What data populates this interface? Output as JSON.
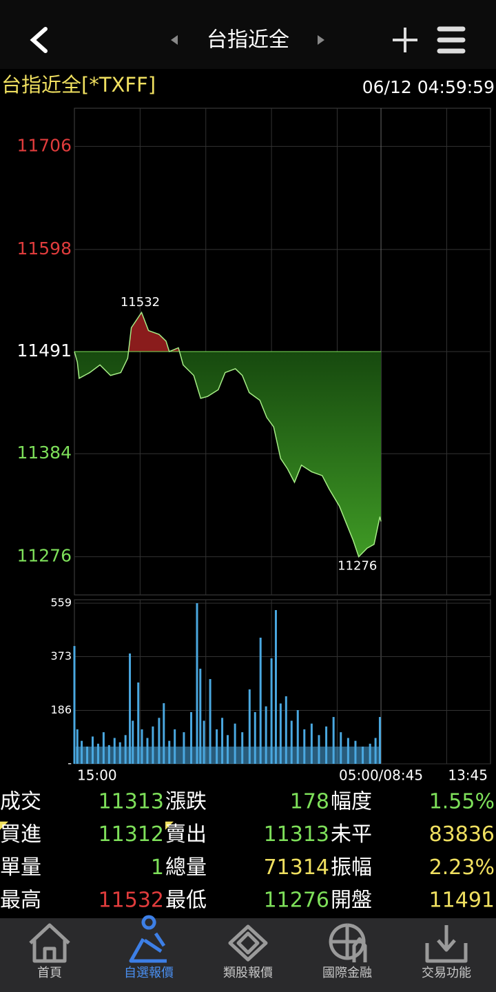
{
  "header": {
    "title": "台指近全"
  },
  "info": {
    "name": "台指近全[*TXFF]",
    "datetime": "06/12 04:59:59"
  },
  "chart_data": [
    {
      "type": "line",
      "x": [
        0,
        8,
        13,
        42,
        70,
        99,
        127,
        146,
        156,
        184,
        203,
        232,
        251,
        260,
        285,
        298,
        327,
        346,
        365,
        394,
        413,
        441,
        460,
        479,
        508,
        527,
        546,
        565,
        584,
        603,
        622,
        650,
        679,
        698,
        726,
        745,
        764,
        779,
        802,
        821,
        837,
        840
      ],
      "values": [
        11491,
        11480,
        11463,
        11469,
        11477,
        11466,
        11469,
        11484,
        11516,
        11532,
        11513,
        11509,
        11502,
        11491,
        11495,
        11477,
        11466,
        11442,
        11444,
        11451,
        11469,
        11473,
        11466,
        11448,
        11440,
        11422,
        11412,
        11379,
        11368,
        11354,
        11372,
        11365,
        11361,
        11347,
        11329,
        11311,
        11293,
        11276,
        11285,
        11289,
        11318,
        11313
      ],
      "color": "#a6ee86",
      "reference": 11491,
      "up_color": "#e03c3c",
      "down_color": "#7ee05a",
      "ylim": [
        11236,
        11746
      ],
      "yticks": [
        11276,
        11384,
        11491,
        11598,
        11706
      ],
      "xlim": [
        0,
        1140
      ],
      "xticks": [
        {
          "value": 0,
          "label": "15:00"
        },
        {
          "value": 840,
          "label": "05:00/08:45"
        },
        {
          "value": 1140,
          "label": "13:45"
        }
      ],
      "xgrid": [
        180,
        360,
        540,
        720,
        1020
      ],
      "annotations": [
        {
          "x": 184,
          "value": 11532
        },
        {
          "x": 779,
          "value": 11276
        }
      ]
    },
    {
      "type": "bar",
      "x": [
        0,
        8,
        20,
        35,
        50,
        65,
        80,
        95,
        110,
        125,
        140,
        152,
        160,
        175,
        185,
        200,
        215,
        232,
        245,
        260,
        275,
        300,
        320,
        336,
        345,
        355,
        372,
        390,
        405,
        420,
        440,
        460,
        480,
        495,
        510,
        525,
        540,
        552,
        565,
        580,
        595,
        612,
        630,
        650,
        670,
        690,
        710,
        730,
        750,
        770,
        790,
        810,
        825,
        837
      ],
      "values": [
        410,
        120,
        80,
        60,
        95,
        70,
        110,
        65,
        90,
        75,
        100,
        384,
        150,
        283,
        120,
        90,
        130,
        160,
        211,
        80,
        120,
        110,
        180,
        559,
        331,
        150,
        295,
        120,
        160,
        100,
        140,
        110,
        259,
        180,
        439,
        200,
        367,
        535,
        210,
        235,
        150,
        187,
        120,
        140,
        100,
        130,
        163,
        110,
        90,
        80,
        60,
        70,
        90,
        163
      ],
      "color": "#4aa8e0",
      "ylim": [
        0,
        571
      ],
      "yticks": [
        {
          "value": 0,
          "label": "-"
        },
        186,
        373,
        559
      ],
      "xlim": [
        0,
        1140
      ]
    }
  ],
  "quote": {
    "rows": [
      [
        {
          "label": "成交",
          "value": 11313,
          "color": "#7ee05a"
        },
        {
          "label": "漲跌",
          "value": 178,
          "color": "#7ee05a"
        },
        {
          "label": "幅度",
          "value": "1.55%",
          "color": "#7ee05a"
        }
      ],
      [
        {
          "label": "買進",
          "value": 11312,
          "color": "#7ee05a"
        },
        {
          "label": "賣出",
          "value": 11313,
          "color": "#7ee05a"
        },
        {
          "label": "未平",
          "value": 83836,
          "color": "#f0e060"
        }
      ],
      [
        {
          "label": "單量",
          "value": 1,
          "color": "#7ee05a"
        },
        {
          "label": "總量",
          "value": 71314,
          "color": "#f0e060"
        },
        {
          "label": "振幅",
          "value": "2.23%",
          "color": "#f0e060"
        }
      ],
      [
        {
          "label": "最高",
          "value": 11532,
          "color": "#e03c3c"
        },
        {
          "label": "最低",
          "value": 11276,
          "color": "#7ee05a"
        },
        {
          "label": "開盤",
          "value": 11491,
          "color": "#f0e060"
        }
      ]
    ]
  },
  "tabs": [
    "首頁",
    "自選報價",
    "類股報價",
    "國際金融",
    "交易功能"
  ],
  "active_tab": 1
}
